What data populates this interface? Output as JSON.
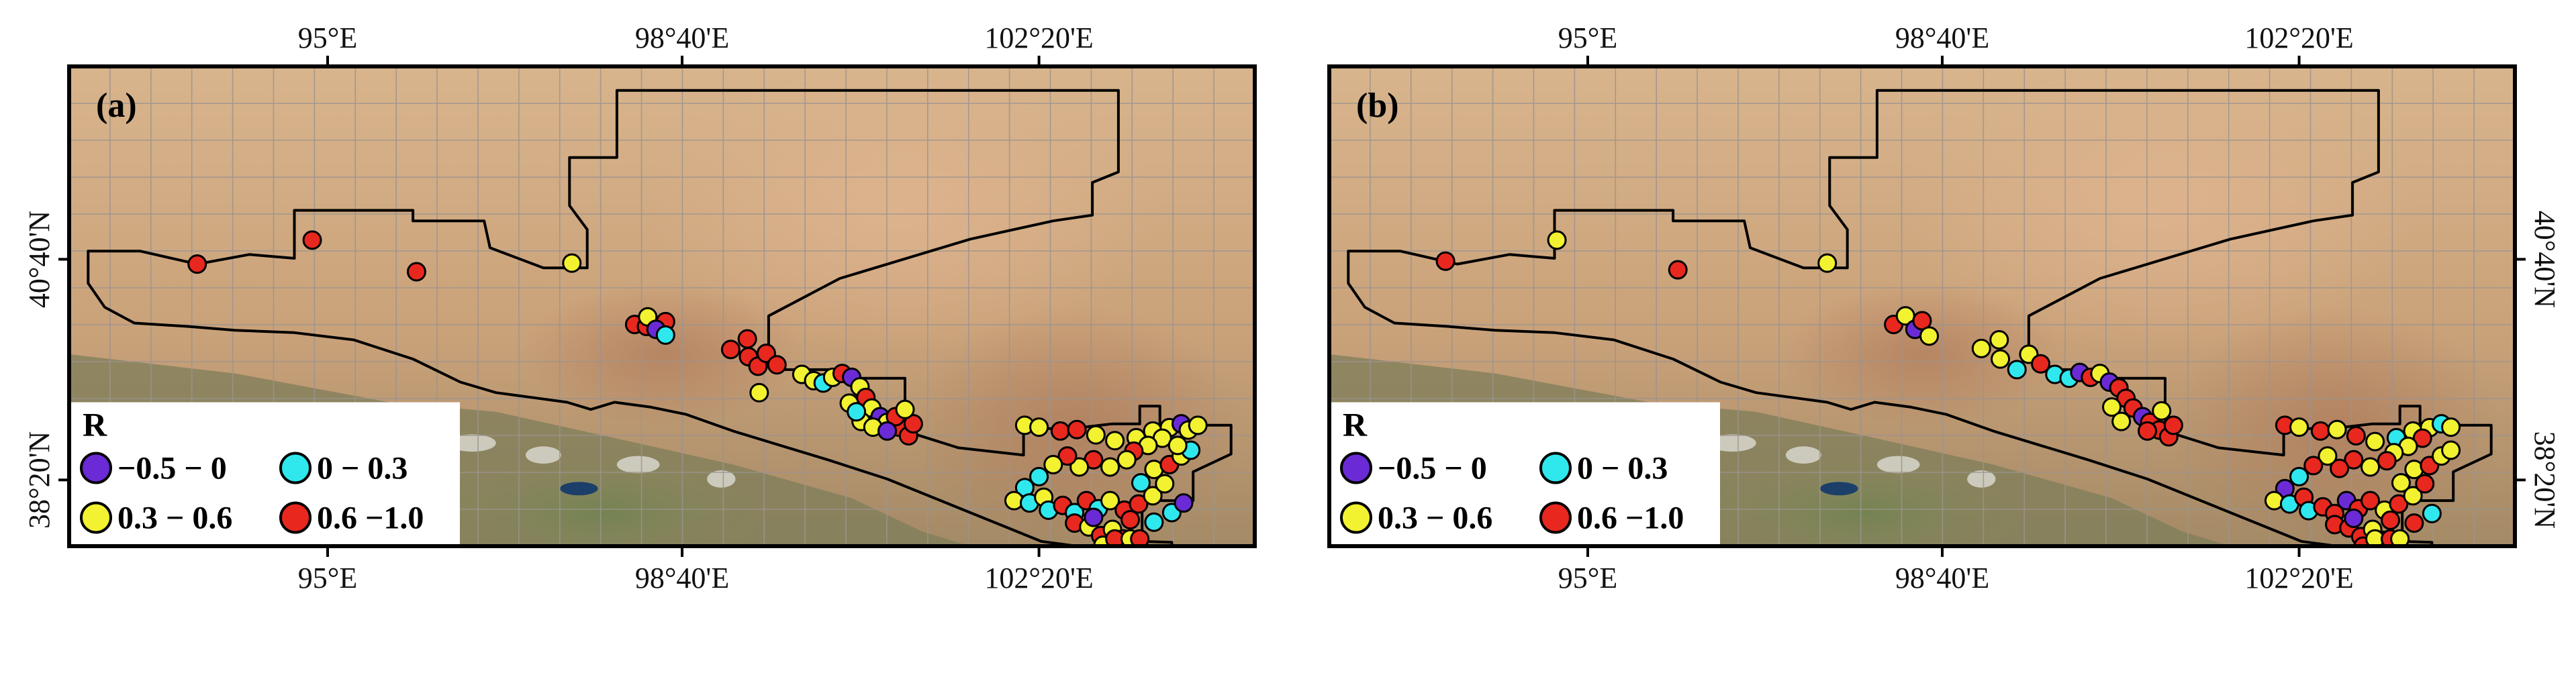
{
  "axis_labels": {
    "lon": [
      "95°E",
      "98°40'E",
      "102°20'E"
    ],
    "lat": [
      "40°40'N",
      "38°20'N"
    ]
  },
  "panels": [
    {
      "label": "(a)",
      "points": [
        {
          "c": 3,
          "x": 0.108,
          "y": 0.412
        },
        {
          "c": 3,
          "x": 0.205,
          "y": 0.362
        },
        {
          "c": 3,
          "x": 0.293,
          "y": 0.428
        },
        {
          "c": 2,
          "x": 0.424,
          "y": 0.41
        },
        {
          "c": 3,
          "x": 0.477,
          "y": 0.538
        },
        {
          "c": 3,
          "x": 0.487,
          "y": 0.542
        },
        {
          "c": 2,
          "x": 0.488,
          "y": 0.522
        },
        {
          "c": 3,
          "x": 0.503,
          "y": 0.532
        },
        {
          "c": 0,
          "x": 0.495,
          "y": 0.548
        },
        {
          "c": 1,
          "x": 0.503,
          "y": 0.56
        },
        {
          "c": 3,
          "x": 0.558,
          "y": 0.59
        },
        {
          "c": 3,
          "x": 0.572,
          "y": 0.568
        },
        {
          "c": 3,
          "x": 0.573,
          "y": 0.605
        },
        {
          "c": 3,
          "x": 0.581,
          "y": 0.625
        },
        {
          "c": 3,
          "x": 0.588,
          "y": 0.598
        },
        {
          "c": 3,
          "x": 0.597,
          "y": 0.622
        },
        {
          "c": 2,
          "x": 0.582,
          "y": 0.68
        },
        {
          "c": 2,
          "x": 0.618,
          "y": 0.642
        },
        {
          "c": 2,
          "x": 0.628,
          "y": 0.655
        },
        {
          "c": 1,
          "x": 0.636,
          "y": 0.66
        },
        {
          "c": 2,
          "x": 0.644,
          "y": 0.648
        },
        {
          "c": 3,
          "x": 0.652,
          "y": 0.64
        },
        {
          "c": 0,
          "x": 0.66,
          "y": 0.648
        },
        {
          "c": 2,
          "x": 0.667,
          "y": 0.668
        },
        {
          "c": 3,
          "x": 0.672,
          "y": 0.69
        },
        {
          "c": 2,
          "x": 0.658,
          "y": 0.702
        },
        {
          "c": 2,
          "x": 0.677,
          "y": 0.712
        },
        {
          "c": 0,
          "x": 0.684,
          "y": 0.73
        },
        {
          "c": 2,
          "x": 0.69,
          "y": 0.742
        },
        {
          "c": 3,
          "x": 0.7,
          "y": 0.752
        },
        {
          "c": 3,
          "x": 0.708,
          "y": 0.77
        },
        {
          "c": 2,
          "x": 0.668,
          "y": 0.74
        },
        {
          "c": 2,
          "x": 0.678,
          "y": 0.752
        },
        {
          "c": 3,
          "x": 0.697,
          "y": 0.73
        },
        {
          "c": 0,
          "x": 0.69,
          "y": 0.76
        },
        {
          "c": 3,
          "x": 0.712,
          "y": 0.745
        },
        {
          "c": 2,
          "x": 0.705,
          "y": 0.715
        },
        {
          "c": 1,
          "x": 0.664,
          "y": 0.72
        },
        {
          "c": 2,
          "x": 0.806,
          "y": 0.748
        },
        {
          "c": 2,
          "x": 0.818,
          "y": 0.752
        },
        {
          "c": 3,
          "x": 0.836,
          "y": 0.76
        },
        {
          "c": 3,
          "x": 0.85,
          "y": 0.757
        },
        {
          "c": 2,
          "x": 0.866,
          "y": 0.768
        },
        {
          "c": 2,
          "x": 0.882,
          "y": 0.78
        },
        {
          "c": 2,
          "x": 0.9,
          "y": 0.774
        },
        {
          "c": 2,
          "x": 0.914,
          "y": 0.76
        },
        {
          "c": 2,
          "x": 0.928,
          "y": 0.753
        },
        {
          "c": 0,
          "x": 0.938,
          "y": 0.745
        },
        {
          "c": 2,
          "x": 0.944,
          "y": 0.758
        },
        {
          "c": 2,
          "x": 0.952,
          "y": 0.748
        },
        {
          "c": 2,
          "x": 0.922,
          "y": 0.775
        },
        {
          "c": 2,
          "x": 0.91,
          "y": 0.79
        },
        {
          "c": 3,
          "x": 0.898,
          "y": 0.802
        },
        {
          "c": 2,
          "x": 0.892,
          "y": 0.82
        },
        {
          "c": 2,
          "x": 0.878,
          "y": 0.835
        },
        {
          "c": 3,
          "x": 0.864,
          "y": 0.82
        },
        {
          "c": 2,
          "x": 0.852,
          "y": 0.835
        },
        {
          "c": 3,
          "x": 0.842,
          "y": 0.812
        },
        {
          "c": 2,
          "x": 0.83,
          "y": 0.83
        },
        {
          "c": 1,
          "x": 0.818,
          "y": 0.855
        },
        {
          "c": 1,
          "x": 0.806,
          "y": 0.878
        },
        {
          "c": 2,
          "x": 0.797,
          "y": 0.905
        },
        {
          "c": 1,
          "x": 0.81,
          "y": 0.91
        },
        {
          "c": 2,
          "x": 0.822,
          "y": 0.898
        },
        {
          "c": 1,
          "x": 0.826,
          "y": 0.925
        },
        {
          "c": 3,
          "x": 0.838,
          "y": 0.915
        },
        {
          "c": 1,
          "x": 0.848,
          "y": 0.93
        },
        {
          "c": 3,
          "x": 0.858,
          "y": 0.905
        },
        {
          "c": 1,
          "x": 0.868,
          "y": 0.922
        },
        {
          "c": 2,
          "x": 0.878,
          "y": 0.905
        },
        {
          "c": 3,
          "x": 0.89,
          "y": 0.925
        },
        {
          "c": 3,
          "x": 0.902,
          "y": 0.912
        },
        {
          "c": 2,
          "x": 0.914,
          "y": 0.895
        },
        {
          "c": 2,
          "x": 0.924,
          "y": 0.87
        },
        {
          "c": 1,
          "x": 0.904,
          "y": 0.868
        },
        {
          "c": 2,
          "x": 0.915,
          "y": 0.84
        },
        {
          "c": 3,
          "x": 0.928,
          "y": 0.83
        },
        {
          "c": 2,
          "x": 0.938,
          "y": 0.812
        },
        {
          "c": 1,
          "x": 0.946,
          "y": 0.8
        },
        {
          "c": 2,
          "x": 0.935,
          "y": 0.79
        },
        {
          "c": 3,
          "x": 0.848,
          "y": 0.952
        },
        {
          "c": 2,
          "x": 0.86,
          "y": 0.96
        },
        {
          "c": 3,
          "x": 0.87,
          "y": 0.978
        },
        {
          "c": 2,
          "x": 0.88,
          "y": 0.965
        },
        {
          "c": 3,
          "x": 0.889,
          "y": 0.985
        },
        {
          "c": 2,
          "x": 0.872,
          "y": 0.998
        },
        {
          "c": 3,
          "x": 0.882,
          "y": 1.012
        },
        {
          "c": 2,
          "x": 0.895,
          "y": 1.005
        },
        {
          "c": 3,
          "x": 0.903,
          "y": 1.02
        },
        {
          "c": 0,
          "x": 0.864,
          "y": 0.94
        },
        {
          "c": 1,
          "x": 0.915,
          "y": 0.95
        },
        {
          "c": 3,
          "x": 0.895,
          "y": 0.945
        },
        {
          "c": 1,
          "x": 0.93,
          "y": 0.93
        },
        {
          "c": 0,
          "x": 0.94,
          "y": 0.91
        }
      ]
    },
    {
      "label": "(b)",
      "points": [
        {
          "c": 3,
          "x": 0.098,
          "y": 0.406
        },
        {
          "c": 2,
          "x": 0.192,
          "y": 0.362
        },
        {
          "c": 3,
          "x": 0.294,
          "y": 0.424
        },
        {
          "c": 2,
          "x": 0.42,
          "y": 0.41
        },
        {
          "c": 3,
          "x": 0.476,
          "y": 0.538
        },
        {
          "c": 2,
          "x": 0.486,
          "y": 0.52
        },
        {
          "c": 0,
          "x": 0.494,
          "y": 0.548
        },
        {
          "c": 3,
          "x": 0.5,
          "y": 0.53
        },
        {
          "c": 2,
          "x": 0.506,
          "y": 0.562
        },
        {
          "c": 2,
          "x": 0.55,
          "y": 0.588
        },
        {
          "c": 2,
          "x": 0.565,
          "y": 0.57
        },
        {
          "c": 2,
          "x": 0.566,
          "y": 0.61
        },
        {
          "c": 1,
          "x": 0.58,
          "y": 0.632
        },
        {
          "c": 2,
          "x": 0.59,
          "y": 0.6
        },
        {
          "c": 3,
          "x": 0.6,
          "y": 0.62
        },
        {
          "c": 1,
          "x": 0.612,
          "y": 0.642
        },
        {
          "c": 1,
          "x": 0.624,
          "y": 0.65
        },
        {
          "c": 0,
          "x": 0.633,
          "y": 0.638
        },
        {
          "c": 3,
          "x": 0.642,
          "y": 0.648
        },
        {
          "c": 2,
          "x": 0.65,
          "y": 0.64
        },
        {
          "c": 0,
          "x": 0.658,
          "y": 0.658
        },
        {
          "c": 3,
          "x": 0.666,
          "y": 0.67
        },
        {
          "c": 3,
          "x": 0.672,
          "y": 0.692
        },
        {
          "c": 2,
          "x": 0.66,
          "y": 0.71
        },
        {
          "c": 3,
          "x": 0.678,
          "y": 0.712
        },
        {
          "c": 0,
          "x": 0.686,
          "y": 0.73
        },
        {
          "c": 3,
          "x": 0.692,
          "y": 0.742
        },
        {
          "c": 3,
          "x": 0.7,
          "y": 0.758
        },
        {
          "c": 3,
          "x": 0.708,
          "y": 0.772
        },
        {
          "c": 2,
          "x": 0.668,
          "y": 0.74
        },
        {
          "c": 3,
          "x": 0.69,
          "y": 0.76
        },
        {
          "c": 3,
          "x": 0.712,
          "y": 0.748
        },
        {
          "c": 2,
          "x": 0.702,
          "y": 0.718
        },
        {
          "c": 3,
          "x": 0.806,
          "y": 0.748
        },
        {
          "c": 2,
          "x": 0.818,
          "y": 0.752
        },
        {
          "c": 3,
          "x": 0.836,
          "y": 0.76
        },
        {
          "c": 2,
          "x": 0.85,
          "y": 0.757
        },
        {
          "c": 3,
          "x": 0.866,
          "y": 0.77
        },
        {
          "c": 2,
          "x": 0.882,
          "y": 0.782
        },
        {
          "c": 1,
          "x": 0.9,
          "y": 0.774
        },
        {
          "c": 2,
          "x": 0.914,
          "y": 0.76
        },
        {
          "c": 2,
          "x": 0.928,
          "y": 0.753
        },
        {
          "c": 1,
          "x": 0.938,
          "y": 0.745
        },
        {
          "c": 2,
          "x": 0.946,
          "y": 0.752
        },
        {
          "c": 3,
          "x": 0.922,
          "y": 0.775
        },
        {
          "c": 2,
          "x": 0.91,
          "y": 0.792
        },
        {
          "c": 2,
          "x": 0.898,
          "y": 0.805
        },
        {
          "c": 3,
          "x": 0.892,
          "y": 0.822
        },
        {
          "c": 2,
          "x": 0.878,
          "y": 0.835
        },
        {
          "c": 3,
          "x": 0.864,
          "y": 0.82
        },
        {
          "c": 3,
          "x": 0.852,
          "y": 0.838
        },
        {
          "c": 2,
          "x": 0.842,
          "y": 0.812
        },
        {
          "c": 3,
          "x": 0.83,
          "y": 0.832
        },
        {
          "c": 1,
          "x": 0.818,
          "y": 0.855
        },
        {
          "c": 0,
          "x": 0.806,
          "y": 0.88
        },
        {
          "c": 2,
          "x": 0.797,
          "y": 0.905
        },
        {
          "c": 1,
          "x": 0.81,
          "y": 0.912
        },
        {
          "c": 3,
          "x": 0.822,
          "y": 0.898
        },
        {
          "c": 1,
          "x": 0.826,
          "y": 0.926
        },
        {
          "c": 3,
          "x": 0.838,
          "y": 0.918
        },
        {
          "c": 3,
          "x": 0.848,
          "y": 0.932
        },
        {
          "c": 0,
          "x": 0.858,
          "y": 0.905
        },
        {
          "c": 3,
          "x": 0.868,
          "y": 0.922
        },
        {
          "c": 3,
          "x": 0.878,
          "y": 0.905
        },
        {
          "c": 2,
          "x": 0.89,
          "y": 0.925
        },
        {
          "c": 3,
          "x": 0.902,
          "y": 0.912
        },
        {
          "c": 2,
          "x": 0.914,
          "y": 0.895
        },
        {
          "c": 3,
          "x": 0.924,
          "y": 0.87
        },
        {
          "c": 2,
          "x": 0.904,
          "y": 0.868
        },
        {
          "c": 2,
          "x": 0.915,
          "y": 0.84
        },
        {
          "c": 3,
          "x": 0.928,
          "y": 0.832
        },
        {
          "c": 2,
          "x": 0.938,
          "y": 0.812
        },
        {
          "c": 2,
          "x": 0.946,
          "y": 0.8
        },
        {
          "c": 3,
          "x": 0.848,
          "y": 0.955
        },
        {
          "c": 3,
          "x": 0.86,
          "y": 0.962
        },
        {
          "c": 3,
          "x": 0.87,
          "y": 0.98
        },
        {
          "c": 2,
          "x": 0.88,
          "y": 0.965
        },
        {
          "c": 3,
          "x": 0.889,
          "y": 0.988
        },
        {
          "c": 3,
          "x": 0.872,
          "y": 1.0
        },
        {
          "c": 2,
          "x": 0.882,
          "y": 1.014
        },
        {
          "c": 3,
          "x": 0.895,
          "y": 1.006
        },
        {
          "c": 2,
          "x": 0.903,
          "y": 1.02
        },
        {
          "c": 0,
          "x": 0.864,
          "y": 0.942
        },
        {
          "c": 3,
          "x": 0.915,
          "y": 0.952
        },
        {
          "c": 3,
          "x": 0.895,
          "y": 0.946
        },
        {
          "c": 1,
          "x": 0.93,
          "y": 0.932
        }
      ]
    }
  ],
  "legend": {
    "title": "R",
    "items": [
      {
        "label": "−0.5 − 0",
        "color": "#6a2bd6"
      },
      {
        "label": "0 − 0.3",
        "color": "#2ee8ee"
      },
      {
        "label": "0.3 − 0.6",
        "color": "#f2f230"
      },
      {
        "label": "0.6 −1.0",
        "color": "#e8281e"
      }
    ]
  }
}
